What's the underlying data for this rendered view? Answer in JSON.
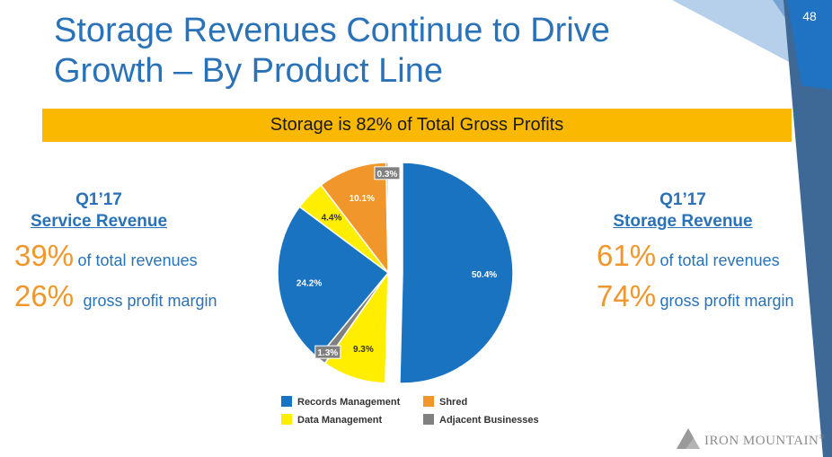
{
  "slide": {
    "title_line1": "Storage Revenues Continue to Drive",
    "title_line2": "Growth – By Product Line",
    "page_number": "48",
    "banner": "Storage is 82% of Total Gross Profits"
  },
  "service": {
    "quarter": "Q1’17",
    "label": "Service Revenue",
    "revenue_pct": "39%",
    "revenue_text": "of total revenues",
    "margin_pct": "26%",
    "margin_text": "gross profit margin"
  },
  "storage": {
    "quarter": "Q1’17",
    "label": "Storage Revenue",
    "revenue_pct": "61%",
    "revenue_text": "of total revenues",
    "margin_pct": "74%",
    "margin_text": "gross profit margin"
  },
  "logo": {
    "text": "IRON MOUNTAIN",
    "mark": "®"
  },
  "chart_data": {
    "type": "pie",
    "title": "",
    "slices": [
      {
        "label": "Records Management",
        "value": 50.4,
        "display": "50.4%",
        "color": "#1a73c1"
      },
      {
        "label": "Data Management",
        "value": 9.3,
        "display": "9.3%",
        "color": "#ffee00"
      },
      {
        "label": "Adjacent Businesses",
        "value": 1.3,
        "display": "1.3%",
        "color": "#808080"
      },
      {
        "label": "Records Management",
        "value": 24.2,
        "display": "24.2%",
        "color": "#1a73c1"
      },
      {
        "label": "Data Management",
        "value": 4.4,
        "display": "4.4%",
        "color": "#ffee00"
      },
      {
        "label": "Shred",
        "value": 10.1,
        "display": "10.1%",
        "color": "#f0962a"
      },
      {
        "label": "Adjacent Businesses",
        "value": 0.3,
        "display": "0.3%",
        "color": "#808080"
      }
    ],
    "legend": [
      {
        "label": "Records Management",
        "color": "#1a73c1"
      },
      {
        "label": "Shred",
        "color": "#f0962a"
      },
      {
        "label": "Data Management",
        "color": "#ffee00"
      },
      {
        "label": "Adjacent Businesses",
        "color": "#808080"
      }
    ],
    "legend_position": "bottom"
  }
}
